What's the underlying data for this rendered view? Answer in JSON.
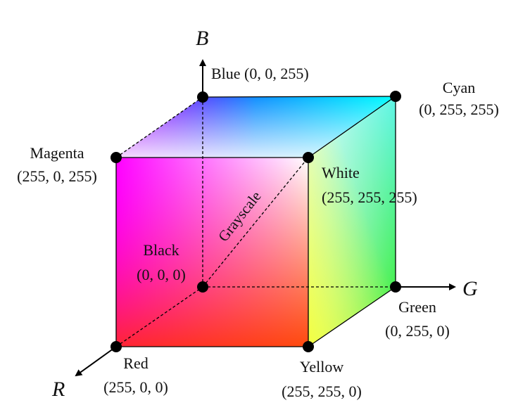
{
  "axes": {
    "blue_axis": "B",
    "green_axis": "G",
    "red_axis": "R"
  },
  "vertices": {
    "blue": {
      "name": "Blue (0, 0, 255)",
      "color": "#0000ff"
    },
    "cyan": {
      "name": "Cyan",
      "value": "(0, 255, 255)",
      "color": "#00ffff"
    },
    "magenta": {
      "name": "Magenta",
      "value": "(255, 0, 255)",
      "color": "#ff00ff"
    },
    "white": {
      "name": "White",
      "value": "(255, 255, 255)",
      "color": "#ffffff"
    },
    "black": {
      "name": "Black",
      "value": "(0, 0, 0)",
      "color": "#000000"
    },
    "green": {
      "name": "Green",
      "value": "(0, 255, 0)",
      "color": "#00ff00"
    },
    "red": {
      "name": "Red",
      "value": "(255, 0, 0)",
      "color": "#ff0000"
    },
    "yellow": {
      "name": "Yellow",
      "value": "(255, 255, 0)",
      "color": "#ffff00"
    }
  },
  "diagonal_label": "Grayscale"
}
